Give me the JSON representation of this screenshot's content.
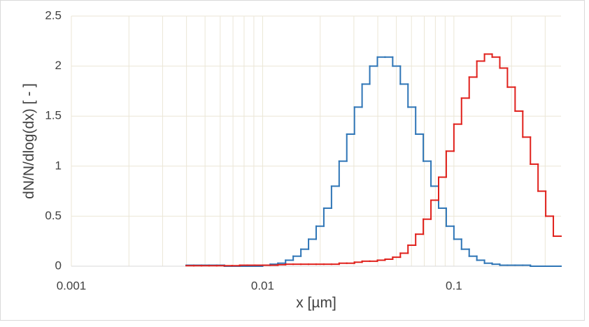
{
  "chart_data": {
    "type": "histogram",
    "xlabel": "x [µm]",
    "ylabel": "dN/N/dlog(dx) [ - ]",
    "xscale": "log",
    "xlim": [
      0.001,
      0.3631
    ],
    "ylim": [
      0,
      2.5
    ],
    "xticks": [
      0.001,
      0.01,
      0.1
    ],
    "minor_xticks": [
      0.002,
      0.003,
      0.004,
      0.005,
      0.006,
      0.007,
      0.008,
      0.009,
      0.02,
      0.03,
      0.04,
      0.05,
      0.06,
      0.07,
      0.08,
      0.09,
      0.2,
      0.3
    ],
    "yticks": [
      0,
      0.5,
      1,
      1.5,
      2,
      2.5
    ],
    "grid": true,
    "grid_color": "#ebe6d6",
    "bins": [
      0.003981,
      0.004365,
      0.004786,
      0.005248,
      0.005754,
      0.00631,
      0.006918,
      0.007586,
      0.008318,
      0.00912,
      0.01,
      0.01096,
      0.01202,
      0.01318,
      0.01445,
      0.01585,
      0.01738,
      0.01905,
      0.02089,
      0.02291,
      0.02512,
      0.02754,
      0.0302,
      0.03311,
      0.03631,
      0.03981,
      0.04365,
      0.04786,
      0.05248,
      0.05754,
      0.0631,
      0.06918,
      0.07586,
      0.08318,
      0.0912,
      0.1,
      0.1096,
      0.1202,
      0.1318,
      0.1445,
      0.1585,
      0.1738,
      0.1905,
      0.2089,
      0.2291,
      0.2512,
      0.2754,
      0.302,
      0.3311,
      0.3631
    ],
    "series": [
      {
        "color": "#2e75b6",
        "values": [
          0.01,
          0.01,
          0.01,
          0.01,
          0.01,
          0,
          0,
          0,
          0,
          0,
          0.01,
          0.02,
          0.03,
          0.06,
          0.1,
          0.17,
          0.27,
          0.4,
          0.58,
          0.8,
          1.05,
          1.32,
          1.59,
          1.82,
          2.0,
          2.09,
          2.09,
          2.0,
          1.82,
          1.59,
          1.32,
          1.05,
          0.8,
          0.58,
          0.4,
          0.27,
          0.17,
          0.1,
          0.06,
          0.03,
          0.02,
          0.01,
          0.01,
          0.01,
          0.01,
          0,
          0,
          0,
          0
        ]
      },
      {
        "color": "#e0201b",
        "values": [
          0.005,
          0.005,
          0.005,
          0.005,
          0.005,
          0.005,
          0.005,
          0.01,
          0.01,
          0.01,
          0.01,
          0.01,
          0.015,
          0.02,
          0.02,
          0.02,
          0.02,
          0.02,
          0.02,
          0.02,
          0.03,
          0.03,
          0.04,
          0.05,
          0.05,
          0.06,
          0.07,
          0.09,
          0.13,
          0.21,
          0.32,
          0.47,
          0.66,
          0.89,
          1.15,
          1.42,
          1.68,
          1.89,
          2.05,
          2.12,
          2.09,
          1.98,
          1.79,
          1.55,
          1.29,
          1.02,
          0.75,
          0.5,
          0.3
        ]
      }
    ]
  }
}
